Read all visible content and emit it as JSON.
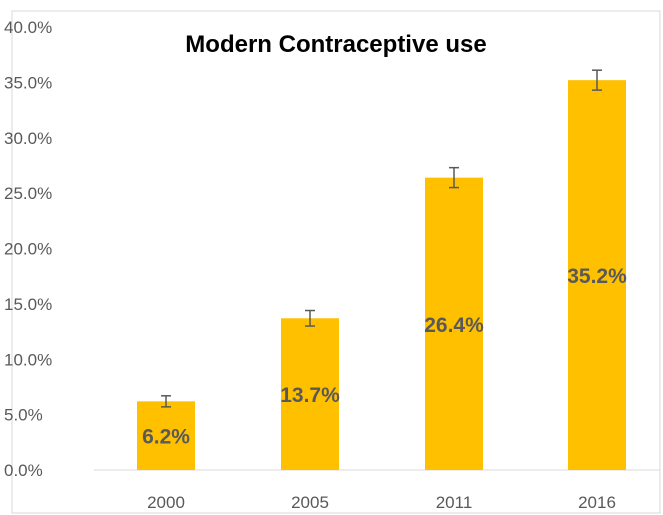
{
  "chart_data": {
    "type": "bar",
    "title": "Modern Contraceptive use",
    "xlabel": "",
    "ylabel": "",
    "categories": [
      "2000",
      "2005",
      "2011",
      "2016"
    ],
    "values": [
      6.2,
      13.7,
      26.4,
      35.2
    ],
    "data_labels": [
      "6.2%",
      "13.7%",
      "26.4%",
      "35.2%"
    ],
    "error_bars": {
      "minus": [
        0.5,
        0.7,
        0.9,
        0.9
      ],
      "plus": [
        0.5,
        0.7,
        0.9,
        0.9
      ]
    },
    "ylim": [
      0,
      40
    ],
    "yticks": [
      0,
      5,
      10,
      15,
      20,
      25,
      30,
      35,
      40
    ],
    "ytick_labels": [
      "0.0%",
      "5.0%",
      "10.0%",
      "15.0%",
      "20.0%",
      "25.0%",
      "30.0%",
      "35.0%",
      "40.0%"
    ],
    "grid": false,
    "legend": "none",
    "colors": {
      "bar": "#FFC000",
      "error_bar": "#595959",
      "axis": "#D9D9D9",
      "label": "#595959"
    }
  }
}
